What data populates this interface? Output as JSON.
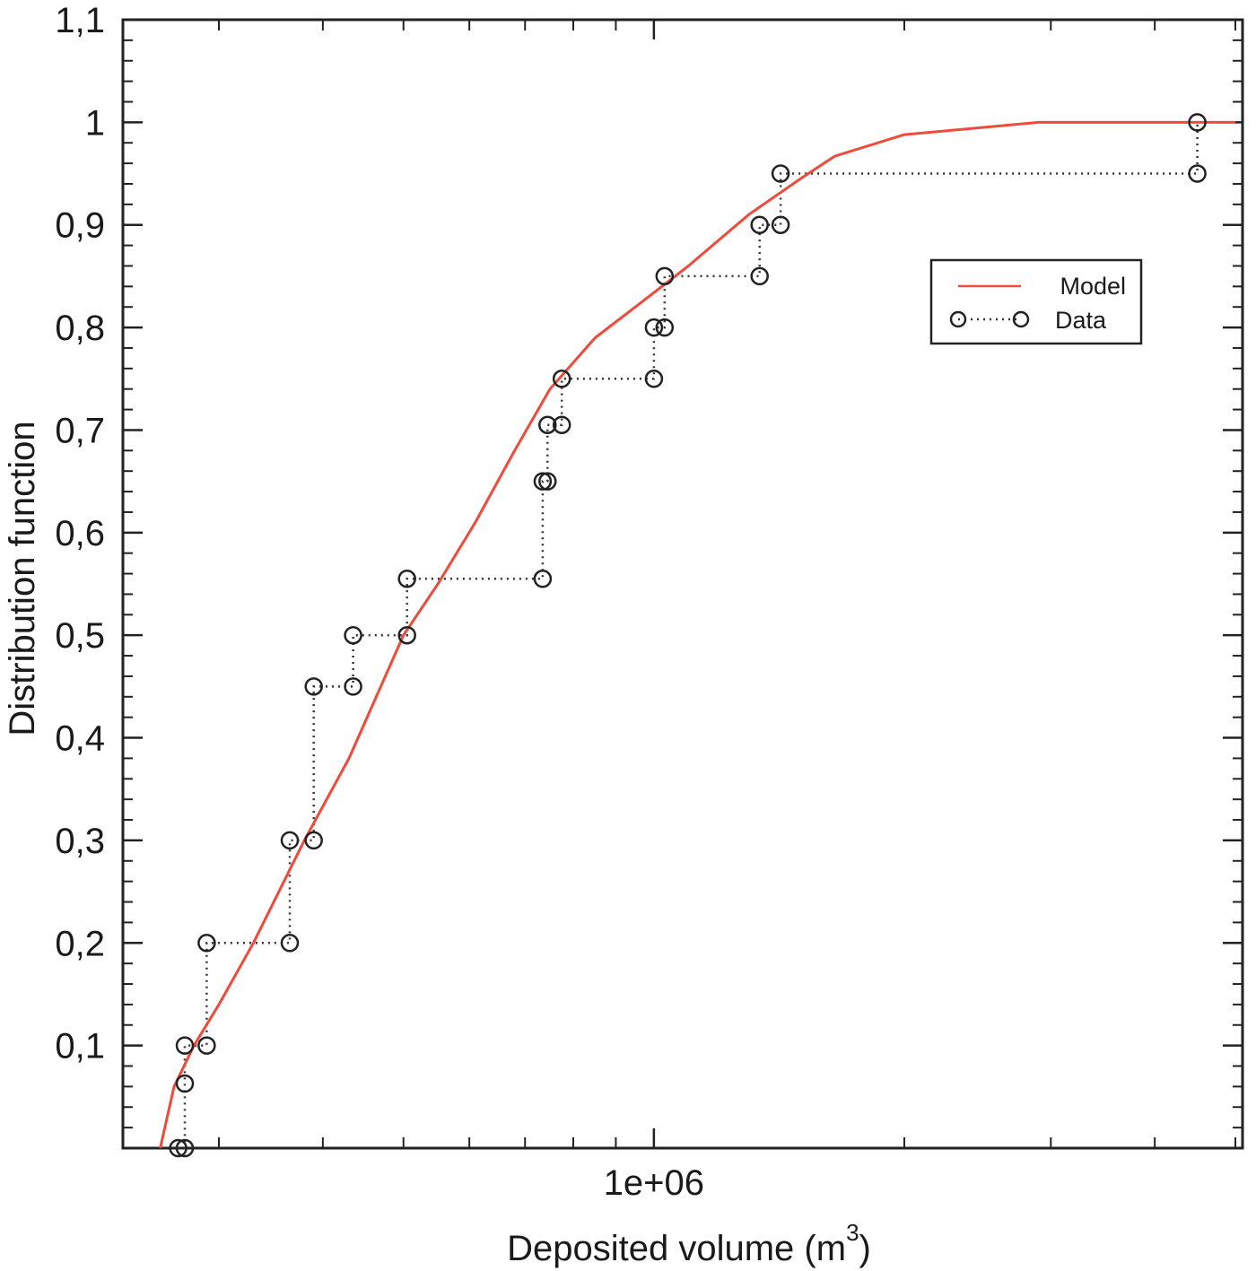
{
  "chart_data": {
    "type": "line",
    "title": "",
    "xlabel": "Deposited volume (m",
    "xlabel_superscript": "3",
    "xlabel_suffix": ")",
    "ylabel": "Distribution function",
    "x_scale": "log",
    "xlim": [
      230000,
      5100000
    ],
    "ylim": [
      0,
      1.1
    ],
    "x_tick_labels": [
      {
        "value": 1000000,
        "label": "1e+06"
      }
    ],
    "y_tick_labels": [
      {
        "value": 0.1,
        "label": "0,1"
      },
      {
        "value": 0.2,
        "label": "0,2"
      },
      {
        "value": 0.3,
        "label": "0,3"
      },
      {
        "value": 0.4,
        "label": "0,4"
      },
      {
        "value": 0.5,
        "label": "0,5"
      },
      {
        "value": 0.6,
        "label": "0,6"
      },
      {
        "value": 0.7,
        "label": "0,7"
      },
      {
        "value": 0.8,
        "label": "0,8"
      },
      {
        "value": 0.9,
        "label": "0,9"
      },
      {
        "value": 1.0,
        "label": "1"
      },
      {
        "value": 1.1,
        "label": "1,1"
      }
    ],
    "x_minor_ticks": [
      300000,
      400000,
      500000,
      600000,
      700000,
      800000,
      900000,
      2000000,
      3000000,
      4000000,
      5000000
    ],
    "grid": false,
    "legend_position": "top-right",
    "series": [
      {
        "name": "Model",
        "color": "#ef4a3a",
        "style": "solid",
        "points": [
          [
            255000,
            0
          ],
          [
            265000,
            0.06
          ],
          [
            280000,
            0.1
          ],
          [
            300000,
            0.14
          ],
          [
            330000,
            0.2
          ],
          [
            380000,
            0.3
          ],
          [
            430000,
            0.38
          ],
          [
            500000,
            0.5
          ],
          [
            550000,
            0.55
          ],
          [
            610000,
            0.61
          ],
          [
            680000,
            0.68
          ],
          [
            750000,
            0.74
          ],
          [
            850000,
            0.79
          ],
          [
            950000,
            0.82
          ],
          [
            1100000,
            0.86
          ],
          [
            1300000,
            0.91
          ],
          [
            1500000,
            0.945
          ],
          [
            1650000,
            0.967
          ],
          [
            2000000,
            0.988
          ],
          [
            2900000,
            1.0
          ],
          [
            5000000,
            1.0
          ]
        ]
      },
      {
        "name": "Data",
        "color": "#333333",
        "style": "dotted-step-circles",
        "points": [
          [
            268000,
            0
          ],
          [
            273000,
            0
          ],
          [
            273000,
            0.063
          ],
          [
            273000,
            0.1
          ],
          [
            290000,
            0.1
          ],
          [
            290000,
            0.2
          ],
          [
            365000,
            0.2
          ],
          [
            365000,
            0.3
          ],
          [
            390000,
            0.3
          ],
          [
            390000,
            0.45
          ],
          [
            435000,
            0.45
          ],
          [
            435000,
            0.5
          ],
          [
            505000,
            0.5
          ],
          [
            505000,
            0.555
          ],
          [
            735000,
            0.555
          ],
          [
            735000,
            0.65
          ],
          [
            745000,
            0.65
          ],
          [
            745000,
            0.705
          ],
          [
            775000,
            0.705
          ],
          [
            775000,
            0.75
          ],
          [
            1000000,
            0.75
          ],
          [
            1000000,
            0.8
          ],
          [
            1030000,
            0.8
          ],
          [
            1030000,
            0.85
          ],
          [
            1340000,
            0.85
          ],
          [
            1340000,
            0.9
          ],
          [
            1420000,
            0.9
          ],
          [
            1420000,
            0.95
          ],
          [
            4500000,
            0.95
          ],
          [
            4500000,
            1.0
          ]
        ]
      }
    ]
  }
}
